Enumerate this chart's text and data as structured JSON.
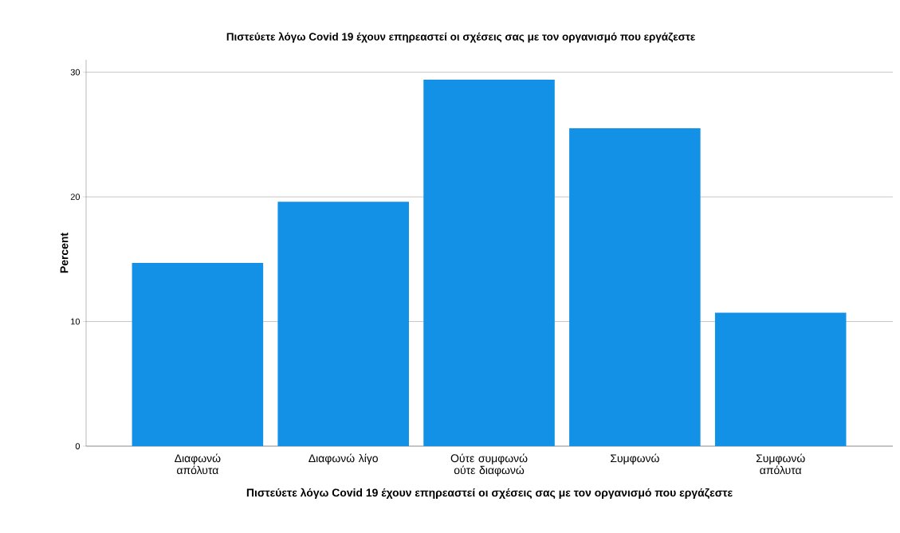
{
  "chart_data": {
    "type": "bar",
    "title": "Πιστεύετε λόγω Covid 19 έχουν επηρεαστεί οι σχέσεις σας με τον οργανισμό που εργάζεστε",
    "xlabel": "Πιστεύετε λόγω Covid 19 έχουν επηρεαστεί οι σχέσεις σας με τον οργανισμό που εργάζεστε",
    "ylabel": "Percent",
    "categories": [
      "Διαφωνώ απόλυτα",
      "Διαφωνώ λίγο",
      "Ούτε συμφωνώ ούτε διαφωνώ",
      "Συμφωνώ",
      "Συμφωνώ απόλυτα"
    ],
    "values": [
      14.7,
      19.6,
      29.4,
      25.5,
      10.7
    ],
    "color": "#1391e6",
    "ylim": [
      0,
      31
    ],
    "yticks": [
      0,
      10,
      20,
      30
    ],
    "grid": "y"
  }
}
